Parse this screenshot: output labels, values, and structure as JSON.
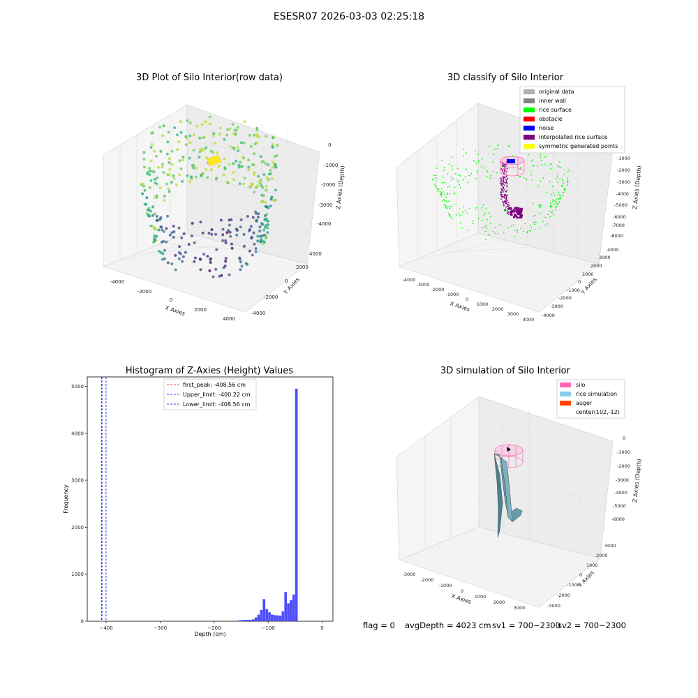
{
  "figure_title": "ESESR07 2026-03-03 02:25:18",
  "status": {
    "flag": "flag = 0",
    "avg_depth": "avgDepth = 4023 cm",
    "sv1": "sv1 = 700~2300",
    "sv2": "sv2 = 700~2300"
  },
  "chart_data": [
    {
      "type": "scatter",
      "projection": "3d",
      "title": "3D Plot of Silo Interior(row data)",
      "xlabel": "X Axies",
      "ylabel": "Y Axies",
      "zlabel": "Z Axies (Depth)",
      "x_ticks": [
        "-4000",
        "-2000",
        "0",
        "2000",
        "4000"
      ],
      "y_ticks": [
        "-4000",
        "-2000",
        "0",
        "2000",
        "4000"
      ],
      "z_ticks": [
        "0",
        "-1000",
        "-2000",
        "-3000",
        "-4000"
      ],
      "xlim": [
        -4500,
        4500
      ],
      "ylim": [
        -4500,
        4500
      ],
      "zlim": [
        -4500,
        0
      ],
      "colormap": "viridis",
      "grid": true,
      "series": [
        {
          "color": "#3b528b",
          "description": "points along silo wall and floor ring"
        },
        {
          "color": "#fde725"
        }
      ]
    },
    {
      "type": "scatter",
      "projection": "3d",
      "title": "3D classify of Silo Interior",
      "xlabel": "X Axies",
      "ylabel": "Y Axies",
      "zlabel": "Z Axies (Depth)",
      "x_ticks": [
        "-4000",
        "-3000",
        "-2000",
        "-1000",
        "0",
        "1000",
        "2000",
        "3000",
        "4000"
      ],
      "y_ticks": [
        "-4000",
        "-3000",
        "-2000",
        "-1000",
        "0",
        "1000",
        "2000",
        "3000",
        "4000"
      ],
      "z_ticks": [
        "0",
        "-1000",
        "-2000",
        "-3000",
        "-4000",
        "-5000",
        "-6000",
        "-7000",
        "-8000"
      ],
      "xlim": [
        -4500,
        4500
      ],
      "ylim": [
        -4500,
        4500
      ],
      "zlim": [
        -8000,
        0
      ],
      "grid": true,
      "legend_position": "top-right",
      "series": [
        {
          "name": "original data",
          "color": "#b0b0b0"
        },
        {
          "name": "inner wall",
          "color": "#808080"
        },
        {
          "name": "rice surface",
          "color": "#00ff00"
        },
        {
          "name": "obstacle",
          "color": "#ff0000"
        },
        {
          "name": "noise",
          "color": "#0000ff"
        },
        {
          "name": "interpolated rice surface",
          "color": "#800080"
        },
        {
          "name": "symmetric generated points",
          "color": "#ffff00"
        }
      ]
    },
    {
      "type": "histogram",
      "title": "Histogram of Z-Axies (Height) Values",
      "xlabel": "Depth (cm)",
      "ylabel": "Frequency",
      "xlim": [
        -435,
        20
      ],
      "ylim": [
        0,
        5200
      ],
      "x_ticks": [
        -400,
        -300,
        -200,
        -100,
        0
      ],
      "y_ticks": [
        0,
        1000,
        2000,
        3000,
        4000,
        5000
      ],
      "bar_color": "#4d4dff",
      "bin_width": 5,
      "bins": [
        {
          "x": -160,
          "count": 10
        },
        {
          "x": -155,
          "count": 20
        },
        {
          "x": -150,
          "count": 25
        },
        {
          "x": -145,
          "count": 30
        },
        {
          "x": -140,
          "count": 30
        },
        {
          "x": -135,
          "count": 30
        },
        {
          "x": -130,
          "count": 40
        },
        {
          "x": -125,
          "count": 80
        },
        {
          "x": -120,
          "count": 140
        },
        {
          "x": -115,
          "count": 240
        },
        {
          "x": -110,
          "count": 470
        },
        {
          "x": -105,
          "count": 260
        },
        {
          "x": -100,
          "count": 190
        },
        {
          "x": -95,
          "count": 140
        },
        {
          "x": -90,
          "count": 130
        },
        {
          "x": -85,
          "count": 125
        },
        {
          "x": -80,
          "count": 120
        },
        {
          "x": -75,
          "count": 210
        },
        {
          "x": -70,
          "count": 620
        },
        {
          "x": -65,
          "count": 380
        },
        {
          "x": -60,
          "count": 450
        },
        {
          "x": -55,
          "count": 570
        },
        {
          "x": -50,
          "count": 4950
        }
      ],
      "vlines": [
        {
          "label": "first_peak: -408.56 cm",
          "x": -408.56,
          "color": "#ff0000",
          "style": "dashed"
        },
        {
          "label": "Upper_limit: -400.22 cm",
          "x": -400.22,
          "color": "#0000ff",
          "style": "dashed"
        },
        {
          "label": "Lower_limit: -408.56 cm",
          "x": -408.56,
          "color": "#0000ff",
          "style": "dashed"
        }
      ],
      "legend_position": "top-center"
    },
    {
      "type": "surface",
      "projection": "3d",
      "title": "3D simulation of Silo Interior",
      "xlabel": "X Axies",
      "ylabel": "Y Axies",
      "zlabel": "Z Axies (Depth)",
      "x_ticks": [
        "-3000",
        "-2000",
        "-1000",
        "0",
        "1000",
        "2000",
        "3000"
      ],
      "y_ticks": [
        "-3000",
        "-2000",
        "-1000",
        "0",
        "1000",
        "2000",
        "3000"
      ],
      "z_ticks": [
        "0",
        "-1000",
        "-2000",
        "-3000",
        "-4000",
        "-5000",
        "-6000"
      ],
      "xlim": [
        -3500,
        3500
      ],
      "ylim": [
        -3500,
        3500
      ],
      "zlim": [
        -6500,
        0
      ],
      "grid": true,
      "legend_position": "top-right",
      "series": [
        {
          "name": "silo",
          "color": "#ff69b4"
        },
        {
          "name": "rice simulation",
          "color": "#87ceeb"
        },
        {
          "name": "auger",
          "color": "#ff4500"
        },
        {
          "name": "center(102,-12)",
          "color": "#ffffff"
        }
      ]
    }
  ]
}
